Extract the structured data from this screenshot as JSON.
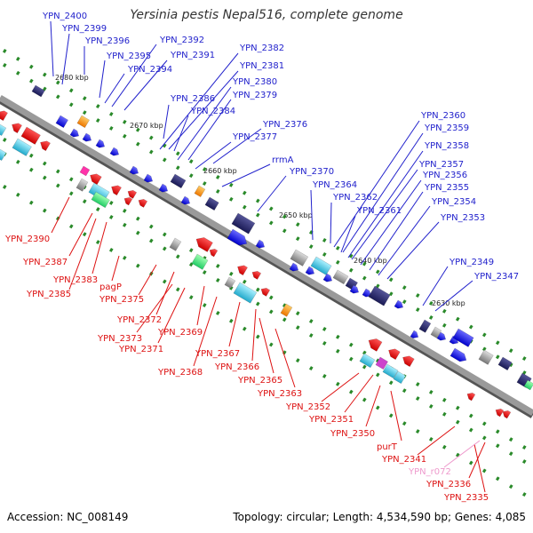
{
  "title": "Yersinia pestis Nepal516, complete genome",
  "footer": {
    "accession": "Accession: NC_008149",
    "topology": "Topology: circular; Length: 4,534,590 bp; Genes: 4,085"
  },
  "colors": {
    "backbone": "#8a8a8a",
    "label_forward": "#2222cc",
    "label_reverse": "#dd1111",
    "label_rna": "#ee99cc",
    "tick": "#2a8a2a"
  },
  "kbp_ticks": [
    "2680 kbp",
    "2670 kbp",
    "2660 kbp",
    "2650 kbp",
    "2640 kbp",
    "2630 kbp"
  ],
  "labels_forward": [
    "YPN_2400",
    "YPN_2399",
    "YPN_2396",
    "YPN_2395",
    "YPN_2394",
    "YPN_2392",
    "YPN_2391",
    "YPN_2382",
    "YPN_2381",
    "YPN_2380",
    "YPN_2379",
    "YPN_2386",
    "YPN_2384",
    "YPN_2376",
    "YPN_2377",
    "rrmA",
    "YPN_2370",
    "YPN_2364",
    "YPN_2362",
    "YPN_2361",
    "YPN_2360",
    "YPN_2359",
    "YPN_2358",
    "YPN_2357",
    "YPN_2356",
    "YPN_2355",
    "YPN_2354",
    "YPN_2353",
    "YPN_2349",
    "YPN_2347"
  ],
  "labels_reverse": [
    "YPN_2390",
    "YPN_2387",
    "YPN_2383",
    "YPN_2385",
    "pagP",
    "YPN_2375",
    "YPN_2372",
    "YPN_2373",
    "YPN_2369",
    "YPN_2371",
    "YPN_2367",
    "YPN_2368",
    "YPN_2366",
    "YPN_2365",
    "YPN_2363",
    "YPN_2352",
    "YPN_2351",
    "YPN_2350",
    "purT",
    "YPN_2341",
    "YPN_2336",
    "YPN_2335"
  ],
  "labels_rna": [
    "YPN_r072"
  ]
}
